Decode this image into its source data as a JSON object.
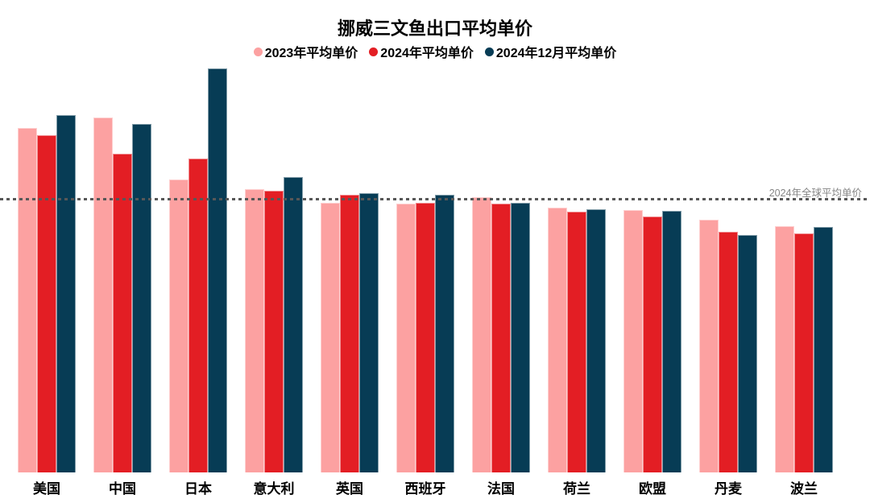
{
  "chart_data": {
    "type": "bar",
    "title": "挪威三文鱼出口平均单价",
    "categories": [
      "美国",
      "中国",
      "日本",
      "意大利",
      "英国",
      "西班牙",
      "法国",
      "荷兰",
      "欧盟",
      "丹麦",
      "波兰"
    ],
    "series": [
      {
        "name": "2023年平均单价",
        "color": "#FCA1A1",
        "values": [
          126.3,
          130.1,
          107.4,
          103.8,
          98.8,
          98.5,
          100.9,
          97.1,
          96.2,
          92.6,
          90.3
        ]
      },
      {
        "name": "2024年平均单价",
        "color": "#E31E24",
        "values": [
          123.6,
          116.8,
          115.0,
          103.2,
          101.8,
          98.8,
          98.5,
          95.6,
          93.8,
          88.2,
          87.6
        ]
      },
      {
        "name": "2024年12月平均单价",
        "color": "#073C55",
        "values": [
          131.0,
          127.7,
          148.1,
          108.3,
          102.4,
          101.8,
          98.8,
          96.5,
          95.9,
          87.0,
          90.0
        ]
      }
    ],
    "reference_line": {
      "label": "2024年全球平均单价",
      "value": 100,
      "style": "dashed",
      "color": "#575757",
      "label_color": "#858585"
    },
    "value_axis": {
      "visible": false,
      "ylim": [
        0,
        150
      ],
      "note": "图中无数值坐标轴；数值为按像素估算的相对指数，虚线（2024年全球平均单价）= 100"
    },
    "xlabel": "",
    "ylabel": "",
    "legend_position": "top",
    "legend_marker": "circle",
    "grid": false,
    "background": "#ffffff"
  }
}
